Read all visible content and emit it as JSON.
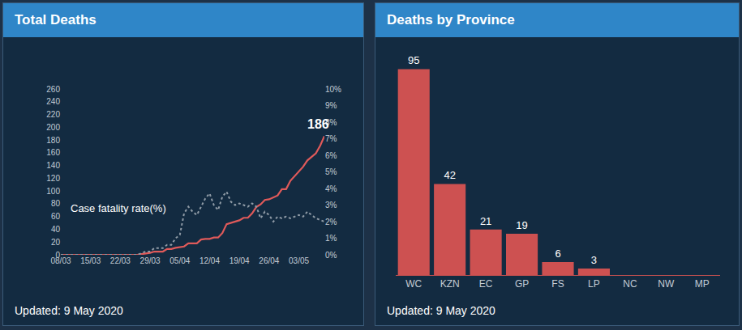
{
  "chart_data": [
    {
      "type": "line",
      "title": "Total Deaths",
      "footer": "Updated: 9 May 2020",
      "categories": [
        "08/03",
        null,
        null,
        null,
        null,
        null,
        null,
        "15/03",
        null,
        null,
        null,
        null,
        null,
        null,
        "22/03",
        null,
        null,
        null,
        null,
        null,
        null,
        "29/03",
        null,
        null,
        null,
        null,
        null,
        null,
        "05/04",
        null,
        null,
        null,
        null,
        null,
        null,
        "12/04",
        null,
        null,
        null,
        null,
        null,
        null,
        "19/04",
        null,
        null,
        null,
        null,
        null,
        null,
        "26/04",
        null,
        null,
        null,
        null,
        null,
        null,
        "03/05",
        null,
        null,
        null,
        null,
        null,
        null
      ],
      "series": [
        {
          "color": "#e05a5a",
          "line_style": "solid",
          "values": [
            0,
            0,
            0,
            0,
            0,
            0,
            0,
            0,
            0,
            0,
            0,
            0,
            0,
            0,
            0,
            0,
            0,
            0,
            0,
            1,
            2,
            3,
            5,
            5,
            5,
            9,
            9,
            11,
            12,
            13,
            18,
            18,
            18,
            24,
            25,
            25,
            27,
            27,
            34,
            48,
            50,
            52,
            54,
            58,
            58,
            65,
            75,
            79,
            86,
            87,
            90,
            93,
            103,
            103,
            116,
            123,
            131,
            138,
            148,
            153,
            159,
            171,
            186
          ]
        },
        {
          "name": "Case fatality rate(%)",
          "color": "#8f9ba6",
          "line_style": "dotted",
          "axis": "y2",
          "values": [
            0,
            0,
            0,
            0,
            0,
            0,
            0,
            0,
            0,
            0,
            0,
            0,
            0,
            0,
            0,
            0,
            0,
            0,
            0,
            0.1,
            0.2,
            0.2,
            0.4,
            0.4,
            0.4,
            0.6,
            0.6,
            1.0,
            1.2,
            2.5,
            2.9,
            2.6,
            2.4,
            2.9,
            3.4,
            3.7,
            3.0,
            2.7,
            3.5,
            3.8,
            3.2,
            3.0,
            3.1,
            3.0,
            2.9,
            3.1,
            2.9,
            2.2,
            2.6,
            2.4,
            2.0,
            2.3,
            2.2,
            2.3,
            2.2,
            2.3,
            2.4,
            2.3,
            2.6,
            2.4,
            2.2,
            2.1,
            2.0
          ]
        }
      ],
      "annotations": [
        {
          "text": "186"
        }
      ],
      "ylim": [
        0,
        260
      ],
      "yticks": [
        0,
        20,
        40,
        60,
        80,
        100,
        120,
        140,
        160,
        180,
        200,
        220,
        240,
        260
      ],
      "y2lim": [
        0,
        10
      ],
      "y2ticks": [
        {
          "value": 0,
          "label": "0%"
        },
        {
          "value": 1,
          "label": "1%"
        },
        {
          "value": 2,
          "label": "2%"
        },
        {
          "value": 3,
          "label": "3%"
        },
        {
          "value": 4,
          "label": "4%"
        },
        {
          "value": 5,
          "label": "5%"
        },
        {
          "value": 6,
          "label": "6%"
        },
        {
          "value": 7,
          "label": "7%"
        },
        {
          "value": 8,
          "label": "8%"
        },
        {
          "value": 9,
          "label": "9%"
        },
        {
          "value": 10,
          "label": "10%"
        }
      ],
      "grid": false
    },
    {
      "type": "bar",
      "title": "Deaths by Province",
      "footer": "Updated: 9 May 2020",
      "categories": [
        "WC",
        "KZN",
        "EC",
        "GP",
        "FS",
        "LP",
        "NC",
        "NW",
        "MP"
      ],
      "values": [
        95,
        42,
        21,
        19,
        6,
        3,
        0,
        0,
        0
      ],
      "value_labels": [
        "95",
        "42",
        "21",
        "19",
        "6",
        "3",
        null,
        null,
        null
      ],
      "data_labels": true,
      "color": "#cd5151",
      "ylim": [
        0,
        100
      ],
      "tick_labels": "x",
      "grid": false
    }
  ]
}
